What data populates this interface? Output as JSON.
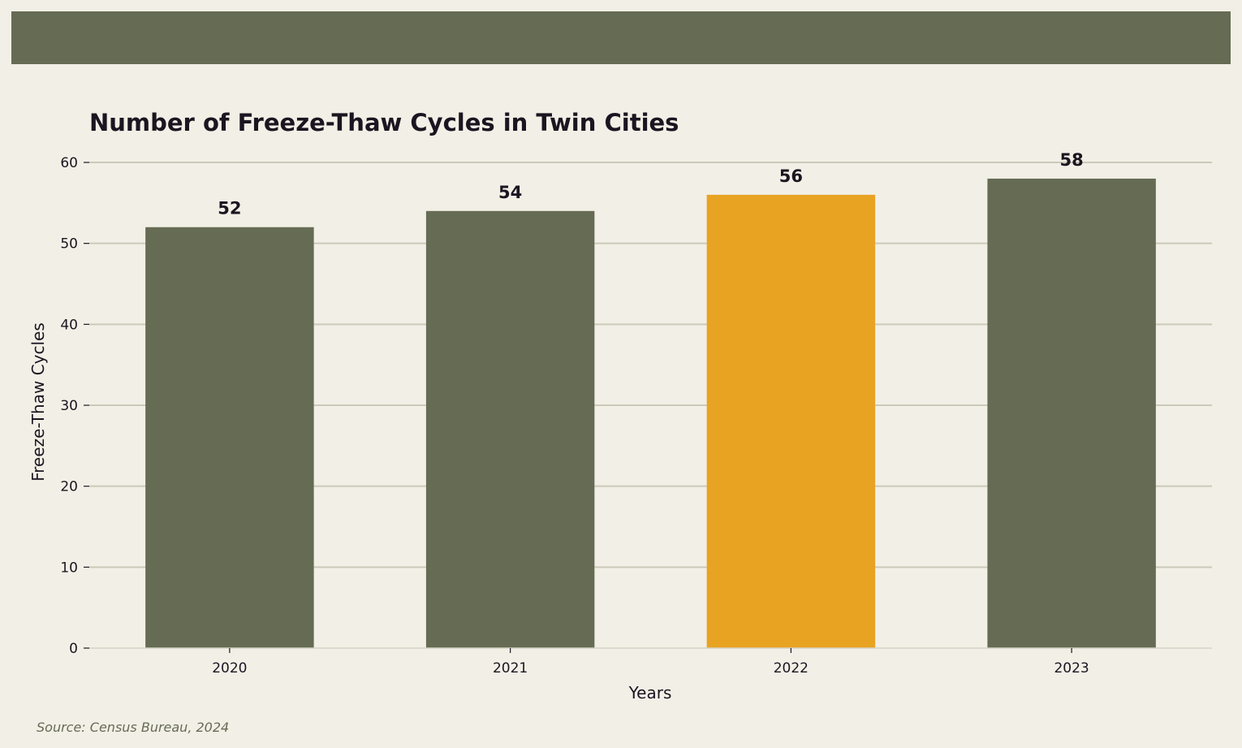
{
  "chart_data": {
    "type": "bar",
    "title": "Number of Freeze-Thaw Cycles in Twin Cities",
    "xlabel": "Years",
    "ylabel": "Freeze-Thaw Cycles",
    "categories": [
      "2020",
      "2021",
      "2022",
      "2023"
    ],
    "values": [
      52,
      54,
      56,
      58
    ],
    "data_labels": [
      "52",
      "54",
      "56",
      "58"
    ],
    "ylim": [
      0,
      60
    ],
    "yticks": [
      0,
      10,
      20,
      30,
      40,
      50,
      60
    ],
    "ytick_labels": [
      "0",
      "10",
      "20",
      "30",
      "40",
      "50",
      "60"
    ],
    "grid": "horizontal",
    "highlight_index": 2,
    "colors": {
      "bar": "#666b54",
      "highlight": "#e8a323",
      "grid": "#cbc9b9",
      "background": "#f2efe6",
      "band": "#666b54",
      "text": "#1a1520"
    }
  },
  "source_note": "Source: Census Bureau, 2024"
}
